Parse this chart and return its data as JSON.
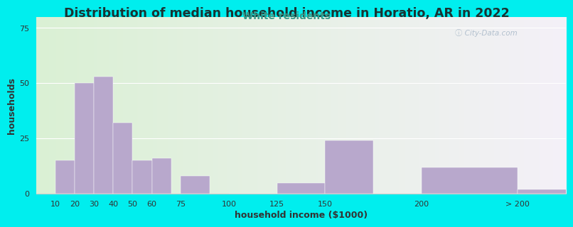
{
  "title": "Distribution of median household income in Horatio, AR in 2022",
  "subtitle": "White residents",
  "xlabel": "household income ($1000)",
  "ylabel": "households",
  "background_outer": "#00EEEE",
  "background_inner_left": "#daf0d4",
  "background_inner_right": "#f4f0f8",
  "bar_color": "#b8a8cc",
  "title_color": "#1a3333",
  "subtitle_color": "#3a9a8a",
  "axis_color": "#333333",
  "bar_positions": [
    10,
    20,
    30,
    40,
    50,
    60,
    75,
    100,
    125,
    150,
    200,
    250
  ],
  "bar_widths": [
    10,
    10,
    10,
    10,
    10,
    10,
    15,
    25,
    25,
    25,
    50,
    50
  ],
  "bar_heights": [
    15,
    50,
    53,
    32,
    15,
    16,
    8,
    0,
    5,
    24,
    12,
    2
  ],
  "xtick_labels": [
    "10",
    "20",
    "30",
    "40",
    "50",
    "60",
    "75",
    "100",
    "125",
    "150",
    "200",
    "> 200"
  ],
  "xtick_positions": [
    10,
    20,
    30,
    40,
    50,
    60,
    75,
    100,
    125,
    150,
    200,
    250
  ],
  "xlim": [
    0,
    275
  ],
  "ylim": [
    0,
    80
  ],
  "yticks": [
    0,
    25,
    50,
    75
  ],
  "title_fontsize": 12.5,
  "subtitle_fontsize": 10,
  "axis_label_fontsize": 9,
  "tick_fontsize": 8
}
